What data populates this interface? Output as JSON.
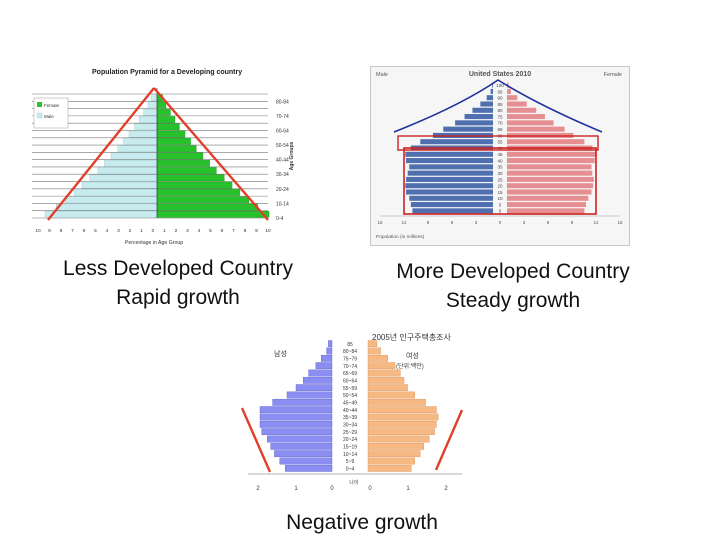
{
  "captions": {
    "left_line1": "Less Developed Country",
    "left_line2": "Rapid growth",
    "right_line1": "More Developed Country",
    "right_line2": "Steady growth",
    "bottom": "Negative growth"
  },
  "colors": {
    "ldc_male": "#c7ebee",
    "ldc_female": "#27c22b",
    "us_male": "#4f6fae",
    "us_female": "#e68f93",
    "kr_male": "#8a8ef2",
    "kr_female": "#f6b983",
    "trend_line": "#e0402b",
    "outline_blue": "#1f2f9e",
    "highlight_box": "#cc2222"
  },
  "chart_data": [
    {
      "type": "bar",
      "title": "Population Pyramid for a Developing country",
      "legend": [
        "Female",
        "Male"
      ],
      "ylabel": "Age Groups",
      "xlabel": "Percentage in Age Group",
      "x_ticks": [
        "10",
        "9",
        "8",
        "7",
        "6",
        "5",
        "4",
        "3",
        "2",
        "1",
        "0",
        "1",
        "2",
        "3",
        "4",
        "5",
        "6",
        "7",
        "8",
        "9",
        "10"
      ],
      "age_labels": [
        "80-84",
        "70-74",
        "60-64",
        "50-54",
        "40-44",
        "30-34",
        "20-24",
        "10-14",
        "0-4"
      ],
      "male": [
        0.5,
        0.8,
        1.2,
        1.6,
        2.0,
        2.5,
        3.0,
        3.5,
        4.1,
        4.7,
        5.3,
        6.0,
        6.7,
        7.4,
        8.2,
        9.0,
        10.0
      ],
      "female": [
        0.5,
        0.8,
        1.2,
        1.6,
        2.0,
        2.5,
        3.0,
        3.5,
        4.1,
        4.7,
        5.3,
        6.0,
        6.7,
        7.4,
        8.2,
        9.0,
        10.0
      ]
    },
    {
      "type": "bar",
      "title": "United States 2010",
      "left_label": "Male",
      "right_label": "Female",
      "xlabel": "Population (in millions)",
      "x_ticks": [
        "15",
        "12",
        "9",
        "6",
        "3",
        "0",
        "3",
        "6",
        "9",
        "12",
        "15"
      ],
      "age_labels": [
        "100",
        "95",
        "90",
        "85",
        "80",
        "75",
        "70",
        "65",
        "60",
        "55",
        "50",
        "45",
        "40",
        "35",
        "30",
        "25",
        "20",
        "15",
        "10",
        "5",
        "0"
      ],
      "male": [
        0.1,
        0.3,
        0.8,
        1.6,
        2.6,
        3.6,
        4.8,
        6.3,
        7.6,
        9.2,
        10.4,
        11.1,
        11.0,
        10.6,
        10.8,
        11.0,
        11.1,
        11.0,
        10.6,
        10.4,
        10.2
      ],
      "female": [
        0.2,
        0.5,
        1.3,
        2.5,
        3.7,
        4.8,
        5.9,
        7.3,
        8.4,
        9.8,
        10.8,
        11.3,
        11.1,
        10.7,
        10.8,
        11.0,
        10.9,
        10.7,
        10.3,
        10.0,
        9.8
      ]
    },
    {
      "type": "bar",
      "title": "2005년 인구주택총조사",
      "left_label": "남성",
      "right_label": "여성",
      "unit": "(단위:백만)",
      "xlabel": "나이",
      "x_ticks": [
        "2",
        "1",
        "0",
        "0",
        "1",
        "2"
      ],
      "age_labels": [
        "85",
        "80~84",
        "75~79",
        "70~74",
        "65~69",
        "60~64",
        "55~59",
        "50~54",
        "45~49",
        "40~44",
        "35~39",
        "30~34",
        "25~29",
        "20~24",
        "15~19",
        "10~14",
        "5~9",
        "0~4"
      ],
      "male": [
        0.1,
        0.15,
        0.3,
        0.45,
        0.65,
        0.8,
        1.0,
        1.25,
        1.65,
        2.0,
        2.0,
        2.0,
        1.95,
        1.8,
        1.7,
        1.6,
        1.45,
        1.3
      ],
      "female": [
        0.25,
        0.35,
        0.55,
        0.75,
        0.9,
        1.0,
        1.1,
        1.3,
        1.6,
        1.9,
        1.95,
        1.9,
        1.85,
        1.7,
        1.55,
        1.45,
        1.3,
        1.2
      ]
    }
  ]
}
